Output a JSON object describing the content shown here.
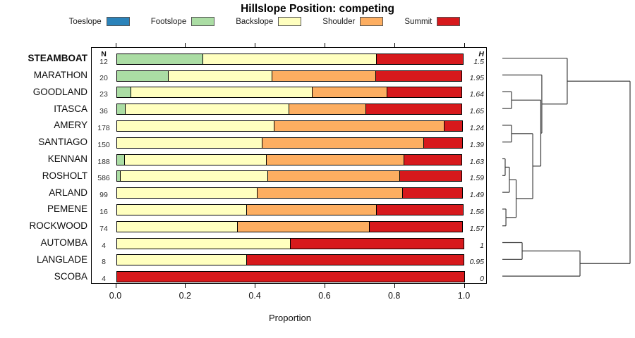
{
  "title": "Hillslope Position: competing",
  "legend": {
    "items": [
      {
        "label": "Toeslope",
        "color": "#2B83BA"
      },
      {
        "label": "Footslope",
        "color": "#ABDDA4"
      },
      {
        "label": "Backslope",
        "color": "#FFFFBF"
      },
      {
        "label": "Shoulder",
        "color": "#FDAE61"
      },
      {
        "label": "Summit",
        "color": "#D7191C"
      }
    ]
  },
  "columns": {
    "n_header": "N",
    "h_header": "H"
  },
  "axis": {
    "tick_labels": [
      "0.0",
      "0.2",
      "0.4",
      "0.6",
      "0.8",
      "1.0"
    ],
    "tick_values": [
      0,
      0.2,
      0.4,
      0.6,
      0.8,
      1.0
    ]
  },
  "chart_data": {
    "type": "bar",
    "variant": "stacked-horizontal-proportions",
    "title": "Hillslope Position: competing",
    "xlabel": "Proportion",
    "xlim": [
      0,
      1
    ],
    "series_labels": [
      "Toeslope",
      "Footslope",
      "Backslope",
      "Shoulder",
      "Summit"
    ],
    "colors": [
      "#2B83BA",
      "#ABDDA4",
      "#FFFFBF",
      "#FDAE61",
      "#D7191C"
    ],
    "rows": [
      {
        "name": "STEAMBOAT",
        "n": 12,
        "h": "1.5",
        "bold": true,
        "values": [
          0,
          0.25,
          0.5,
          0,
          0.25
        ]
      },
      {
        "name": "MARATHON",
        "n": 20,
        "h": "1.95",
        "bold": false,
        "values": [
          0,
          0.15,
          0.3,
          0.3,
          0.25
        ]
      },
      {
        "name": "GOODLAND",
        "n": 23,
        "h": "1.64",
        "bold": false,
        "values": [
          0,
          0.044,
          0.522,
          0.217,
          0.217
        ]
      },
      {
        "name": "ITASCA",
        "n": 36,
        "h": "1.65",
        "bold": false,
        "values": [
          0,
          0.028,
          0.472,
          0.222,
          0.278
        ]
      },
      {
        "name": "AMERY",
        "n": 178,
        "h": "1.24",
        "bold": false,
        "values": [
          0,
          0,
          0.455,
          0.49,
          0.055
        ]
      },
      {
        "name": "SANTIAGO",
        "n": 150,
        "h": "1.39",
        "bold": false,
        "values": [
          0,
          0,
          0.42,
          0.465,
          0.115
        ]
      },
      {
        "name": "KENNAN",
        "n": 188,
        "h": "1.63",
        "bold": false,
        "values": [
          0,
          0.025,
          0.41,
          0.395,
          0.17
        ]
      },
      {
        "name": "ROSHOLT",
        "n": 586,
        "h": "1.59",
        "bold": false,
        "values": [
          0,
          0.013,
          0.425,
          0.38,
          0.182
        ]
      },
      {
        "name": "ARLAND",
        "n": 99,
        "h": "1.49",
        "bold": false,
        "values": [
          0,
          0,
          0.405,
          0.42,
          0.175
        ]
      },
      {
        "name": "PEMENE",
        "n": 16,
        "h": "1.56",
        "bold": false,
        "values": [
          0,
          0,
          0.375,
          0.375,
          0.25
        ]
      },
      {
        "name": "ROCKWOOD",
        "n": 74,
        "h": "1.57",
        "bold": false,
        "values": [
          0,
          0,
          0.35,
          0.38,
          0.27
        ]
      },
      {
        "name": "AUTOMBA",
        "n": 4,
        "h": "1",
        "bold": false,
        "values": [
          0,
          0,
          0.5,
          0,
          0.5
        ]
      },
      {
        "name": "LANGLADE",
        "n": 8,
        "h": "0.95",
        "bold": false,
        "values": [
          0,
          0,
          0.375,
          0,
          0.625
        ]
      },
      {
        "name": "SCOBA",
        "n": 4,
        "h": "0",
        "bold": false,
        "values": [
          0,
          0,
          0,
          0,
          1
        ]
      }
    ]
  },
  "dendrogram": {
    "leaf_order": [
      "STEAMBOAT",
      "MARATHON",
      "GOODLAND",
      "ITASCA",
      "AMERY",
      "SANTIAGO",
      "KENNAN",
      "ROSHOLT",
      "ARLAND",
      "PEMENE",
      "ROCKWOOD",
      "AUTOMBA",
      "LANGLADE",
      "SCOBA"
    ],
    "merges": [
      [
        "KENNAN",
        "ROSHOLT",
        0.022
      ],
      [
        "PEMENE",
        "ROCKWOOD",
        0.028
      ],
      [
        "#0",
        "ARLAND",
        0.055
      ],
      [
        "GOODLAND",
        "ITASCA",
        0.072
      ],
      [
        "AMERY",
        "SANTIAGO",
        0.072
      ],
      [
        "#2",
        "#1",
        0.108
      ],
      [
        "AUTOMBA",
        "LANGLADE",
        0.155
      ],
      [
        "#4",
        "#5",
        0.238
      ],
      [
        "#3",
        "#7",
        0.301
      ],
      [
        "MARATHON",
        "#8",
        0.309
      ],
      [
        "STEAMBOAT",
        "#9",
        0.508
      ],
      [
        "#6",
        "SCOBA",
        0.608
      ],
      [
        "#10",
        "#11",
        1.0
      ]
    ]
  }
}
